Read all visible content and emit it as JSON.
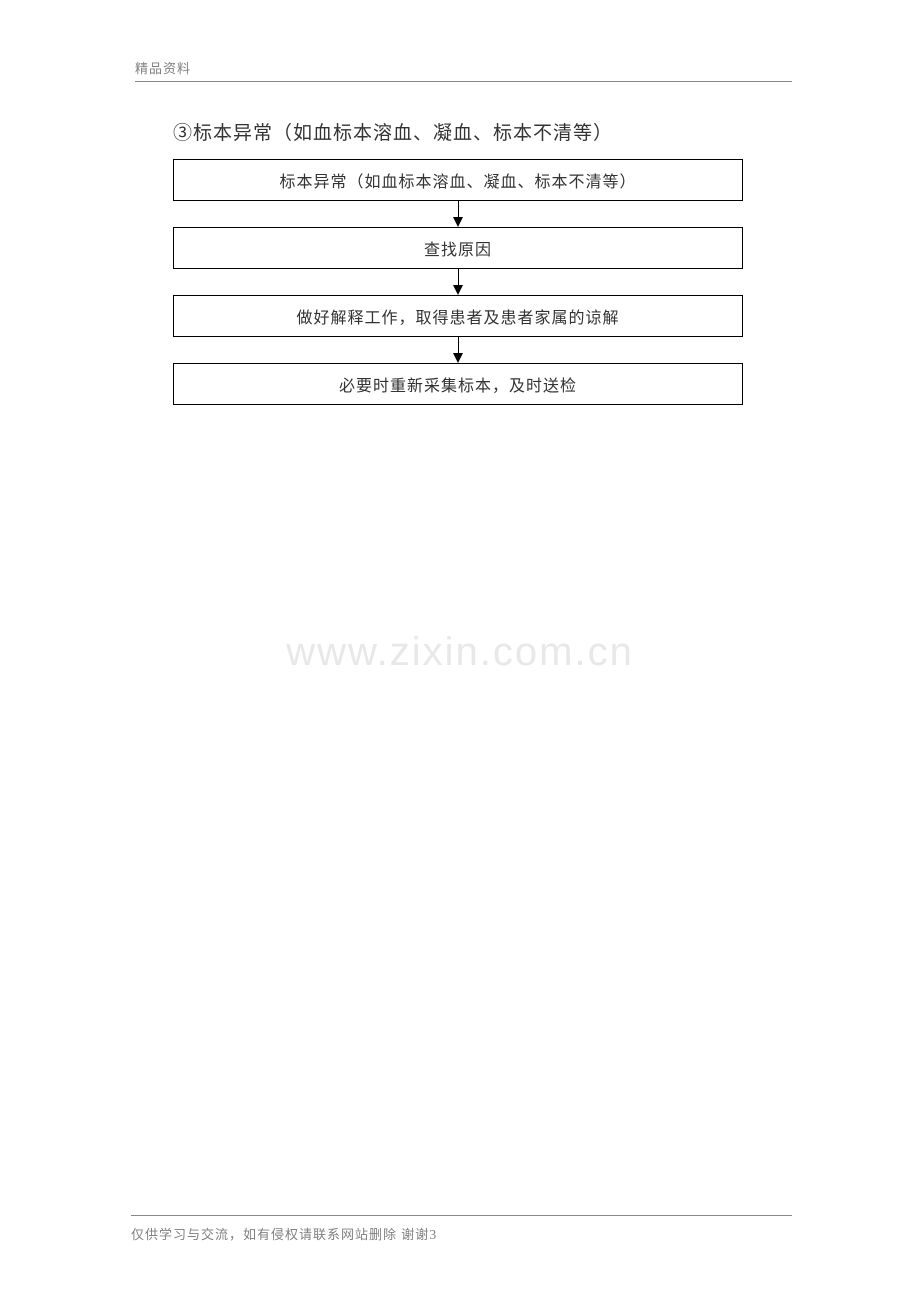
{
  "header": {
    "text": "精品资料"
  },
  "title": "③标本异常（如血标本溶血、凝血、标本不清等）",
  "flowchart": {
    "type": "flowchart",
    "boxes": [
      "标本异常（如血标本溶血、凝血、标本不清等）",
      "查找原因",
      "做好解释工作，取得患者及患者家属的谅解",
      "必要时重新采集标本，及时送检"
    ],
    "box_border_color": "#000000",
    "box_background": "#ffffff",
    "box_text_color": "#333333",
    "box_fontsize": 16,
    "arrow_color": "#000000"
  },
  "watermark": "www.zixin.com.cn",
  "footer": {
    "text": "仅供学习与交流，如有侵权请联系网站删除 谢谢",
    "page_number": "3"
  },
  "colors": {
    "header_text": "#808080",
    "footer_text": "#808080",
    "divider": "#888888",
    "watermark": "#e8e8e8",
    "background": "#ffffff",
    "title": "#333333"
  },
  "typography": {
    "title_fontsize": 19,
    "header_fontsize": 13,
    "footer_fontsize": 13,
    "watermark_fontsize": 40
  }
}
